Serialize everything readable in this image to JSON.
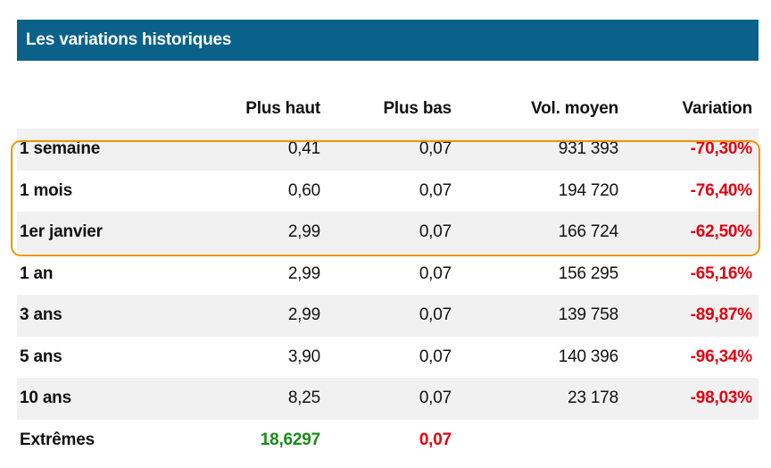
{
  "title": "Les variations historiques",
  "colors": {
    "header_bg": "#0a6189",
    "negative": "#e3000f",
    "positive": "#1a8a1a",
    "highlight": "#f39200",
    "row_alt": "#f1f1f1"
  },
  "columns": [
    "",
    "Plus haut",
    "Plus bas",
    "Vol. moyen",
    "Variation"
  ],
  "rows": [
    {
      "period": "1 semaine",
      "high": "0,41",
      "low": "0,07",
      "volume": "931 393",
      "variation": "-70,30%"
    },
    {
      "period": "1 mois",
      "high": "0,60",
      "low": "0,07",
      "volume": "194 720",
      "variation": "-76,40%"
    },
    {
      "period": "1er janvier",
      "high": "2,99",
      "low": "0,07",
      "volume": "166 724",
      "variation": "-62,50%"
    },
    {
      "period": "1 an",
      "high": "2,99",
      "low": "0,07",
      "volume": "156 295",
      "variation": "-65,16%"
    },
    {
      "period": "3 ans",
      "high": "2,99",
      "low": "0,07",
      "volume": "139 758",
      "variation": "-89,87%"
    },
    {
      "period": "5 ans",
      "high": "3,90",
      "low": "0,07",
      "volume": "140 396",
      "variation": "-96,34%"
    },
    {
      "period": "10 ans",
      "high": "8,25",
      "low": "0,07",
      "volume": "23 178",
      "variation": "-98,03%"
    },
    {
      "period": "Extrêmes",
      "high": "18,6297",
      "low": "0,07",
      "volume": "",
      "variation": ""
    }
  ]
}
